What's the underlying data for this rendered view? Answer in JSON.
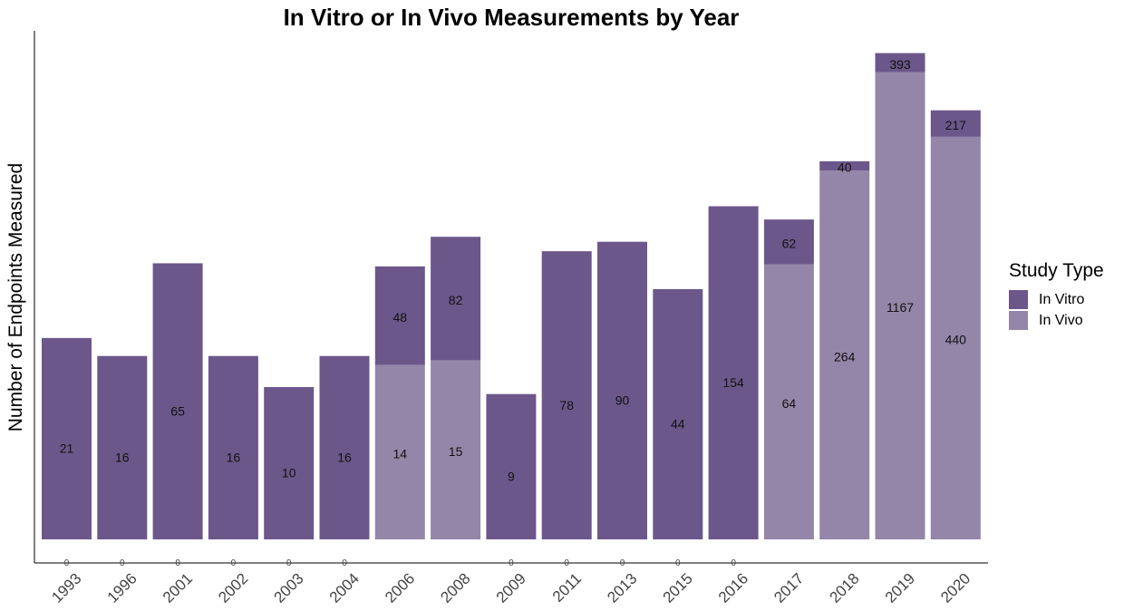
{
  "chart_data": {
    "type": "bar",
    "stacked": true,
    "title": "In Vitro or In Vivo Measurements by Year",
    "xlabel": "",
    "ylabel": "Number of Endpoints Measured",
    "categories": [
      "1993",
      "1996",
      "2001",
      "2002",
      "2003",
      "2004",
      "2006",
      "2008",
      "2009",
      "2011",
      "2013",
      "2015",
      "2016",
      "2017",
      "2018",
      "2019",
      "2020"
    ],
    "x_tick_markers": [
      "0",
      "0",
      "0",
      "0",
      "0",
      "0",
      "",
      "",
      "0",
      "0",
      "0",
      "0",
      "0",
      "",
      "",
      "",
      ""
    ],
    "series": [
      {
        "name": "In Vivo",
        "color": "#9486a8",
        "values": [
          0,
          0,
          0,
          0,
          0,
          0,
          14,
          15,
          0,
          0,
          0,
          0,
          0,
          64,
          264,
          1167,
          440
        ]
      },
      {
        "name": "In Vitro",
        "color": "#6c578b",
        "values": [
          21,
          16,
          65,
          16,
          10,
          16,
          48,
          82,
          9,
          78,
          90,
          44,
          154,
          62,
          40,
          393,
          217
        ]
      }
    ],
    "yscale": "log",
    "legend": {
      "title": "Study Type",
      "position": "right",
      "items": [
        "In Vitro",
        "In Vivo"
      ]
    },
    "grid": false
  }
}
